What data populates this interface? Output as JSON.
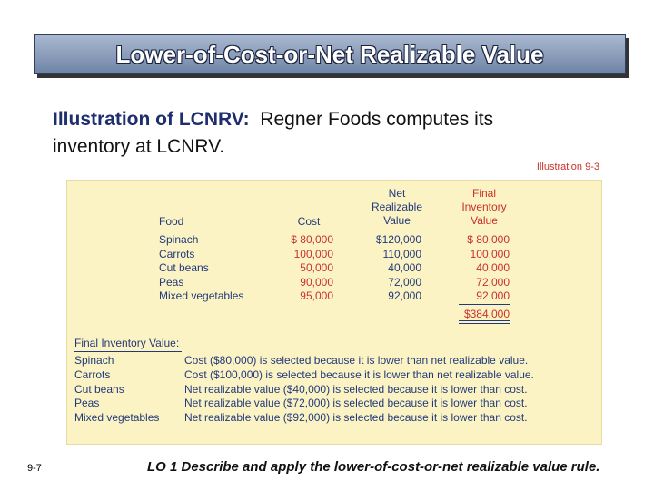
{
  "header": {
    "title": "Lower-of-Cost-or-Net Realizable Value"
  },
  "intro": {
    "lead": "Illustration of LCNRV:",
    "text": "Regner Foods computes its",
    "text2": "inventory at LCNRV."
  },
  "illustration_label": "Illustration 9-3",
  "table": {
    "headers": {
      "food": "Food",
      "cost": "Cost",
      "nrv": [
        "Net",
        "Realizable",
        "Value"
      ],
      "final": [
        "Final",
        "Inventory",
        "Value"
      ]
    },
    "rows": [
      [
        "Spinach",
        "$ 80,000",
        "$120,000",
        "$ 80,000"
      ],
      [
        "Carrots",
        "100,000",
        "110,000",
        "100,000"
      ],
      [
        "Cut beans",
        "50,000",
        "40,000",
        "40,000"
      ],
      [
        "Peas",
        "90,000",
        "72,000",
        "72,000"
      ],
      [
        "Mixed vegetables",
        "95,000",
        "92,000",
        "92,000"
      ]
    ],
    "total": "$384,000"
  },
  "final_inventory": {
    "heading": "Final Inventory Value:",
    "rows": [
      [
        "Spinach",
        "Cost ($80,000) is selected because it is lower than net realizable value."
      ],
      [
        "Carrots",
        "Cost ($100,000) is selected because it is lower than net realizable value."
      ],
      [
        "Cut beans",
        "Net realizable value ($40,000) is selected because it is lower than cost."
      ],
      [
        "Peas",
        "Net realizable value ($72,000) is selected because it is lower than cost."
      ],
      [
        "Mixed vegetables",
        "Net realizable value ($92,000) is selected because it is lower than cost."
      ]
    ]
  },
  "footer": {
    "slide": "9-7",
    "lo": "LO 1  Describe and apply the lower-of-cost-or-net realizable value rule."
  }
}
